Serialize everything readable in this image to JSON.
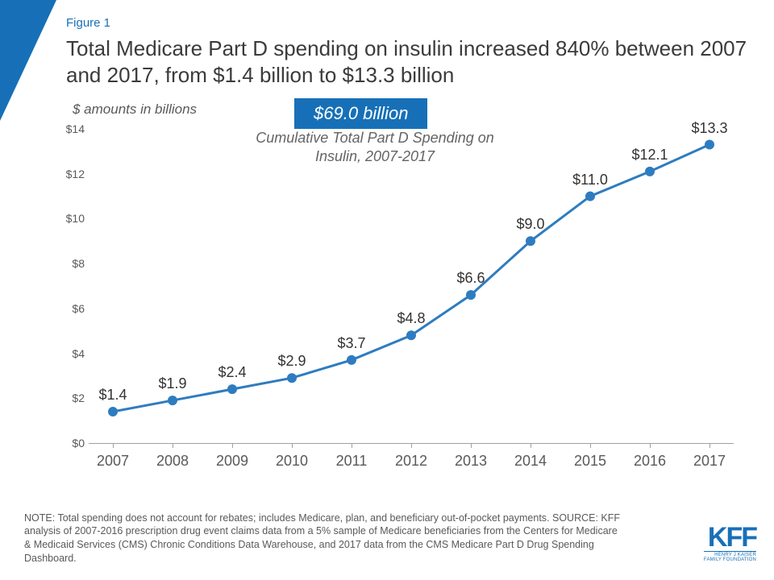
{
  "colors": {
    "brand": "#1770b7",
    "triangle": "#1770b7",
    "label_text": "#1770b7",
    "line": "#2e7cc0",
    "marker": "#2e7cc0",
    "axis_text": "#595959",
    "data_label_text": "#333333",
    "background": "#ffffff"
  },
  "figure_label": "Figure 1",
  "title": "Total Medicare Part D spending on insulin increased 840% between 2007 and 2017, from $1.4 billion to $13.3 billion",
  "subtitle": "$ amounts in billions",
  "callout": {
    "value": "$69.0 billion",
    "caption": "Cumulative Total Part D Spending on Insulin, 2007-2017"
  },
  "chart": {
    "type": "line",
    "categories": [
      "2007",
      "2008",
      "2009",
      "2010",
      "2011",
      "2012",
      "2013",
      "2014",
      "2015",
      "2016",
      "2017"
    ],
    "values": [
      1.4,
      1.9,
      2.4,
      2.9,
      3.7,
      4.8,
      6.6,
      9.0,
      11.0,
      12.1,
      13.3
    ],
    "value_labels": [
      "$1.4",
      "$1.9",
      "$2.4",
      "$2.9",
      "$3.7",
      "$4.8",
      "$6.6",
      "$9.0",
      "$11.0",
      "$12.1",
      "$13.3"
    ],
    "ylim": [
      0,
      14
    ],
    "ytick_step": 2,
    "ytick_labels": [
      "$0",
      "$2",
      "$4",
      "$6",
      "$8",
      "$10",
      "$12",
      "$14"
    ],
    "line_width": 3,
    "marker_radius": 6,
    "label_fontsize": 18,
    "axis_fontsize_x": 18,
    "axis_fontsize_y": 14
  },
  "footnote": "NOTE: Total spending does not account for rebates; includes Medicare, plan, and beneficiary out-of-pocket payments. SOURCE: KFF analysis of 2007-2016 prescription drug event claims data from a 5% sample of Medicare beneficiaries from the Centers for Medicare & Medicaid Services (CMS) Chronic Conditions Data Warehouse, and 2017 data from the CMS Medicare Part D Drug Spending Dashboard.",
  "logo": {
    "main": "KFF",
    "sub": "HENRY J KAISER\nFAMILY FOUNDATION"
  }
}
